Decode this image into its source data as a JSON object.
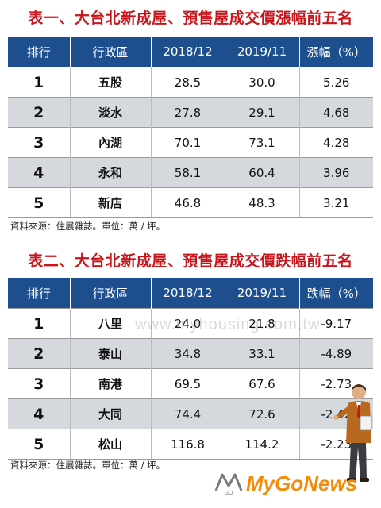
{
  "table1": {
    "title": "表一、大台北新成屋、預售屋成交價漲幅前五名",
    "headers": [
      "排行",
      "行政區",
      "2018/12",
      "2019/11",
      "漲幅（%）"
    ],
    "rows": [
      [
        "1",
        "五股",
        "28.5",
        "30.0",
        "5.26"
      ],
      [
        "2",
        "淡水",
        "27.8",
        "29.1",
        "4.68"
      ],
      [
        "3",
        "內湖",
        "70.1",
        "73.1",
        "4.28"
      ],
      [
        "4",
        "永和",
        "58.1",
        "60.4",
        "3.96"
      ],
      [
        "5",
        "新店",
        "46.8",
        "48.3",
        "3.21"
      ]
    ],
    "source": "資料來源：住展雜誌。單位：萬 / 坪。"
  },
  "table2": {
    "title": "表二、大台北新成屋、預售屋成交價跌幅前五名",
    "headers": [
      "排行",
      "行政區",
      "2018/12",
      "2019/11",
      "跌幅（%）"
    ],
    "rows": [
      [
        "1",
        "八里",
        "24.0",
        "21.8",
        "-9.17"
      ],
      [
        "2",
        "泰山",
        "34.8",
        "33.1",
        "-4.89"
      ],
      [
        "3",
        "南港",
        "69.5",
        "67.6",
        "-2.73"
      ],
      [
        "4",
        "大同",
        "74.4",
        "72.6",
        "-2.42"
      ],
      [
        "5",
        "松山",
        "116.8",
        "114.2",
        "-2.23"
      ]
    ],
    "source": "資料來源：住展雜誌。單位：萬 / 坪。"
  },
  "watermark": "www.myhousing.com.tw",
  "logo": {
    "text": "MyGoNews",
    "mark": "GO",
    "color": "#f28c0a"
  },
  "colors": {
    "title": "#c8161d",
    "header_bg": "#1d4f8f",
    "row_alt": "#d5d9de"
  }
}
